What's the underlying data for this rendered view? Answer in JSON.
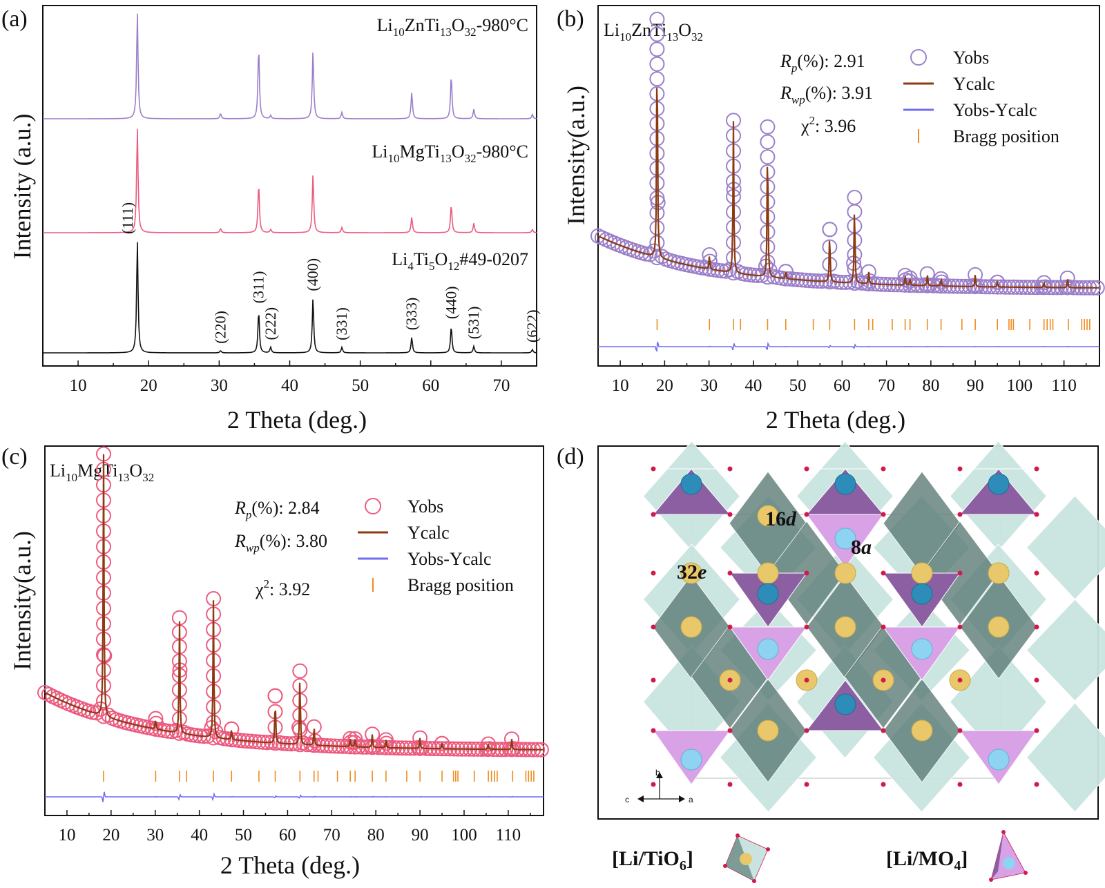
{
  "chart_data": [
    {
      "panel": "(a)",
      "type": "line",
      "xlabel": "2 Theta (deg.)",
      "ylabel": "Intensity (a.u.)",
      "xlim": [
        5,
        75
      ],
      "xticks": [
        10,
        20,
        30,
        40,
        50,
        60,
        70
      ],
      "series": [
        {
          "name": "Li10ZnTi13O32-980°C",
          "label_parts": [
            [
              "Li",
              ""
            ],
            [
              "10",
              "sub"
            ],
            [
              "ZnTi",
              ""
            ],
            [
              "13",
              "sub"
            ],
            [
              "O",
              ""
            ],
            [
              "32",
              "sub"
            ],
            [
              "-980°C",
              ""
            ]
          ],
          "color": "#9b7fc9",
          "peaks": [
            [
              18.4,
              100
            ],
            [
              30.2,
              5
            ],
            [
              35.6,
              68
            ],
            [
              37.3,
              3
            ],
            [
              43.3,
              64
            ],
            [
              47.4,
              6
            ],
            [
              57.3,
              25
            ],
            [
              62.9,
              41
            ],
            [
              66.1,
              9
            ],
            [
              74.4,
              4
            ]
          ]
        },
        {
          "name": "Li10MgTi13O32-980°C",
          "label_parts": [
            [
              "Li",
              ""
            ],
            [
              "10",
              "sub"
            ],
            [
              "MgTi",
              ""
            ],
            [
              "13",
              "sub"
            ],
            [
              "O",
              ""
            ],
            [
              "32",
              "sub"
            ],
            [
              "-980°C",
              ""
            ]
          ],
          "color": "#ec5b7f",
          "peaks": [
            [
              18.4,
              100
            ],
            [
              30.2,
              4
            ],
            [
              35.6,
              47
            ],
            [
              37.3,
              3
            ],
            [
              43.3,
              56
            ],
            [
              47.4,
              5
            ],
            [
              57.3,
              15
            ],
            [
              62.9,
              27
            ],
            [
              66.1,
              9
            ],
            [
              74.4,
              3
            ]
          ]
        },
        {
          "name": "Li4Ti5O12#49-0207",
          "label_parts": [
            [
              "Li",
              ""
            ],
            [
              "4",
              "sub"
            ],
            [
              "Ti",
              ""
            ],
            [
              "5",
              "sub"
            ],
            [
              "O",
              ""
            ],
            [
              "12",
              "sub"
            ],
            [
              "#49-0207",
              ""
            ]
          ],
          "color": "#111111",
          "peaks": [
            [
              18.4,
              100
            ],
            [
              30.2,
              2
            ],
            [
              35.6,
              38
            ],
            [
              37.3,
              5
            ],
            [
              43.3,
              49
            ],
            [
              47.4,
              5
            ],
            [
              57.3,
              14
            ],
            [
              62.9,
              24
            ],
            [
              66.1,
              6
            ],
            [
              74.4,
              3
            ]
          ]
        }
      ],
      "hkl_labels": [
        {
          "text": "(111)",
          "x": 18.4
        },
        {
          "text": "(220)",
          "x": 30.2
        },
        {
          "text": "(311)",
          "x": 35.6
        },
        {
          "text": "(222)",
          "x": 37.3
        },
        {
          "text": "(400)",
          "x": 43.3
        },
        {
          "text": "(331)",
          "x": 47.4
        },
        {
          "text": "(333)",
          "x": 57.3
        },
        {
          "text": "(440)",
          "x": 62.9
        },
        {
          "text": "(531)",
          "x": 66.1
        },
        {
          "text": "(622)",
          "x": 74.4
        }
      ]
    },
    {
      "panel": "(b)",
      "type": "scatter",
      "title_parts": [
        [
          "Li",
          ""
        ],
        [
          "10",
          "sub"
        ],
        [
          "ZnTi",
          ""
        ],
        [
          "13",
          "sub"
        ],
        [
          "O",
          ""
        ],
        [
          "32",
          "sub"
        ]
      ],
      "xlabel": "2 Theta (deg.)",
      "ylabel": "Intensity(a.u.)",
      "xlim": [
        5,
        118
      ],
      "xticks": [
        10,
        20,
        30,
        40,
        50,
        60,
        70,
        80,
        90,
        100,
        110
      ],
      "stats": {
        "Rp": "2.91",
        "Rwp": "3.91",
        "chi2": "3.96"
      },
      "legend": [
        "Yobs",
        "Ycalc",
        "Yobs-Ycalc",
        "Bragg position"
      ],
      "colors": {
        "obs": "#9b7fc9",
        "calc": "#8b3a12",
        "diff": "#6f6cf0",
        "bragg": "#f08a1c"
      },
      "peaks": [
        [
          18.3,
          100
        ],
        [
          30.1,
          6
        ],
        [
          35.5,
          64
        ],
        [
          43.2,
          63
        ],
        [
          47.3,
          3
        ],
        [
          57.2,
          22
        ],
        [
          62.8,
          36
        ],
        [
          66.0,
          5
        ],
        [
          74.2,
          4
        ],
        [
          75.3,
          3
        ],
        [
          79.2,
          5
        ],
        [
          82.3,
          3
        ],
        [
          90.0,
          5
        ],
        [
          95.0,
          2
        ],
        [
          105.5,
          2
        ],
        [
          110.8,
          4
        ]
      ],
      "bragg_positions": [
        18.3,
        30.1,
        35.5,
        37.1,
        43.2,
        47.3,
        53.5,
        57.2,
        62.8,
        66.0,
        66.9,
        71.3,
        74.2,
        75.3,
        79.2,
        82.3,
        87.0,
        90.0,
        95.0,
        97.6,
        98.1,
        98.6,
        102.3,
        105.5,
        106.2,
        106.9,
        107.5,
        111.0,
        114.0,
        114.6,
        115.2,
        115.8
      ]
    },
    {
      "panel": "(c)",
      "type": "scatter",
      "title_parts": [
        [
          "Li",
          ""
        ],
        [
          "10",
          "sub"
        ],
        [
          "MgTi",
          ""
        ],
        [
          "13",
          "sub"
        ],
        [
          "O",
          ""
        ],
        [
          "32",
          "sub"
        ]
      ],
      "xlabel": "2 Theta (deg.)",
      "ylabel": "Intensity(a.u.)",
      "xlim": [
        5,
        118
      ],
      "xticks": [
        10,
        20,
        30,
        40,
        50,
        60,
        70,
        80,
        90,
        100,
        110
      ],
      "stats": {
        "Rp": "2.84",
        "Rwp": "3.80",
        "chi2": "3.92"
      },
      "legend": [
        "Yobs",
        "Ycalc",
        "Yobs-Ycalc",
        "Bragg position"
      ],
      "colors": {
        "obs": "#ec5b7f",
        "calc": "#8b3a12",
        "diff": "#6f6cf0",
        "bragg": "#f08a1c"
      },
      "peaks": [
        [
          18.3,
          100
        ],
        [
          30.1,
          4
        ],
        [
          35.5,
          44
        ],
        [
          43.2,
          53
        ],
        [
          47.3,
          4
        ],
        [
          57.2,
          18
        ],
        [
          62.8,
          28
        ],
        [
          66.0,
          7
        ],
        [
          74.2,
          3
        ],
        [
          75.3,
          3
        ],
        [
          79.2,
          5
        ],
        [
          82.3,
          3
        ],
        [
          90.0,
          4
        ],
        [
          95.0,
          2
        ],
        [
          105.5,
          2
        ],
        [
          110.8,
          4
        ]
      ],
      "bragg_positions": [
        18.3,
        30.1,
        35.5,
        37.1,
        43.2,
        47.3,
        53.5,
        57.2,
        62.8,
        66.0,
        66.9,
        71.3,
        74.2,
        75.3,
        79.2,
        82.3,
        87.0,
        90.0,
        95.0,
        97.6,
        98.1,
        98.6,
        102.3,
        105.5,
        106.2,
        106.9,
        107.5,
        111.0,
        114.0,
        114.6,
        115.2,
        115.8
      ]
    }
  ],
  "panels": {
    "a_label": "(a)",
    "b_label": "(b)",
    "c_label": "(c)",
    "d_label": "(d)",
    "d_site_16d": [
      "16",
      "d"
    ],
    "d_site_8a": [
      "8",
      "a"
    ],
    "d_site_32e": [
      "32",
      "e"
    ],
    "d_axes": [
      "b",
      "c",
      "a"
    ],
    "d_legend_octa": [
      "[Li/TiO",
      "6",
      "]"
    ],
    "d_legend_tetra": [
      "[Li/MO",
      "4",
      "]"
    ]
  },
  "structure_colors": {
    "tetra_dark": "#8c5fa3",
    "tetra_light": "#d9a2e6",
    "octa_light": "#c9e4e0",
    "octa_dark": "#5e7d78",
    "atom_yellow": "#e8c86a",
    "atom_blue": "#2d8cb8",
    "atom_lightblue": "#8fd3f2",
    "oxygen": "#d11a4a"
  }
}
